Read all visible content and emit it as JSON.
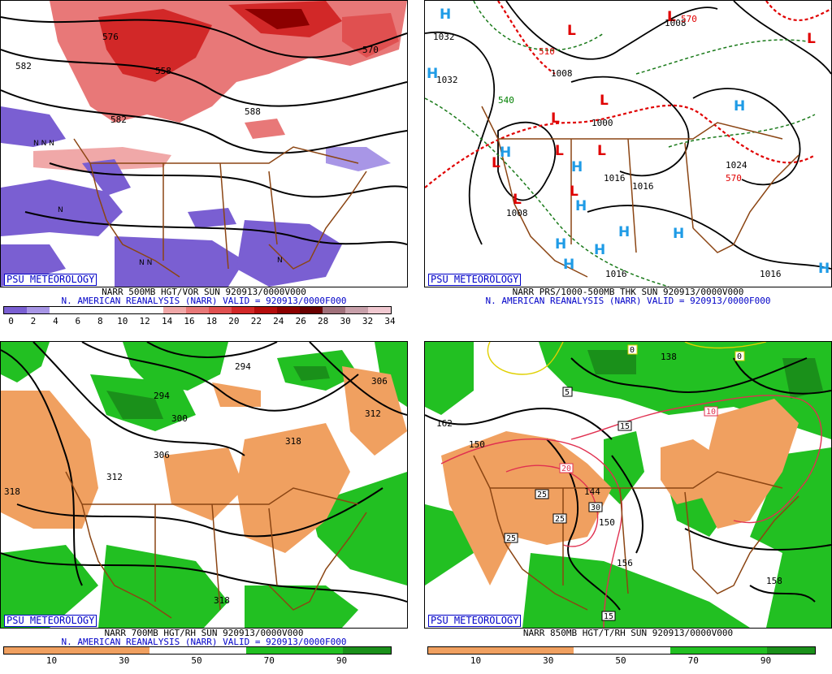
{
  "panels": [
    {
      "badge": "PSU METEOROLOGY",
      "title": "NARR 500MB HGT/VOR SUN 920913/0000V000",
      "subtitle": "N. AMERICAN REANALYSIS (NARR) VALID = 920913/0000F000",
      "colorbar_colors": [
        "#7a5fd2",
        "#a896e6",
        "#ffffff",
        "#ffffff",
        "#ffffff",
        "#ffffff",
        "#ffffff",
        "#f0a8a8",
        "#e87878",
        "#e05050",
        "#d22828",
        "#b40c0c",
        "#8c0000",
        "#6a0000",
        "#a0707a",
        "#c8a0aa",
        "#f0c8d0"
      ],
      "colorbar_ticks": [
        "0",
        "2",
        "4",
        "6",
        "8",
        "10",
        "12",
        "14",
        "16",
        "18",
        "20",
        "22",
        "24",
        "26",
        "28",
        "30",
        "32",
        "34"
      ],
      "contour_labels": [
        "582",
        "576",
        "558",
        "570",
        "582",
        "588"
      ]
    },
    {
      "badge": "PSU METEOROLOGY",
      "title": "NARR PRS/1000-500MB THK SUN 920913/0000V000",
      "subtitle": "N. AMERICAN REANALYSIS (NARR) VALID = 920913/0000F000",
      "highs_lows": [
        "H",
        "H",
        "L",
        "L",
        "L",
        "L",
        "L",
        "L",
        "L",
        "L",
        "L",
        "L",
        "H",
        "H",
        "H",
        "H",
        "H",
        "H",
        "H",
        "H",
        "H",
        "H"
      ],
      "contour_labels": [
        "1032",
        "1032",
        "1008",
        "1008",
        "1000",
        "1024",
        "1016",
        "1016",
        "1008",
        "1016",
        "1016",
        "540",
        "570",
        "510",
        "570"
      ]
    },
    {
      "badge": "PSU METEOROLOGY",
      "title": "NARR 700MB HGT/RH SUN 920913/0000V000",
      "subtitle": "N. AMERICAN REANALYSIS (NARR) VALID = 920913/0000F000",
      "colorbar_ticks": [
        "10",
        "30",
        "50",
        "70",
        "90"
      ],
      "contour_labels": [
        "294",
        "294",
        "300",
        "306",
        "306",
        "312",
        "312",
        "318",
        "318",
        "318"
      ]
    },
    {
      "badge": "PSU METEOROLOGY",
      "title": "NARR 850MB HGT/T/RH SUN 920913/0000V000",
      "subtitle": "",
      "colorbar_ticks": [
        "10",
        "30",
        "50",
        "70",
        "90"
      ],
      "contour_labels": [
        "138",
        "162",
        "150",
        "144",
        "150",
        "156",
        "158"
      ],
      "temp_labels": [
        "0",
        "0",
        "5",
        "10",
        "15",
        "20",
        "25",
        "25",
        "25",
        "30",
        "15"
      ]
    }
  ],
  "colors": {
    "brown": "#8b4513",
    "vorPurple": "#7a5fd2",
    "orange": "#f0a060",
    "green": "#22c022",
    "red": "#e00000",
    "blue": "#1e9be6"
  }
}
